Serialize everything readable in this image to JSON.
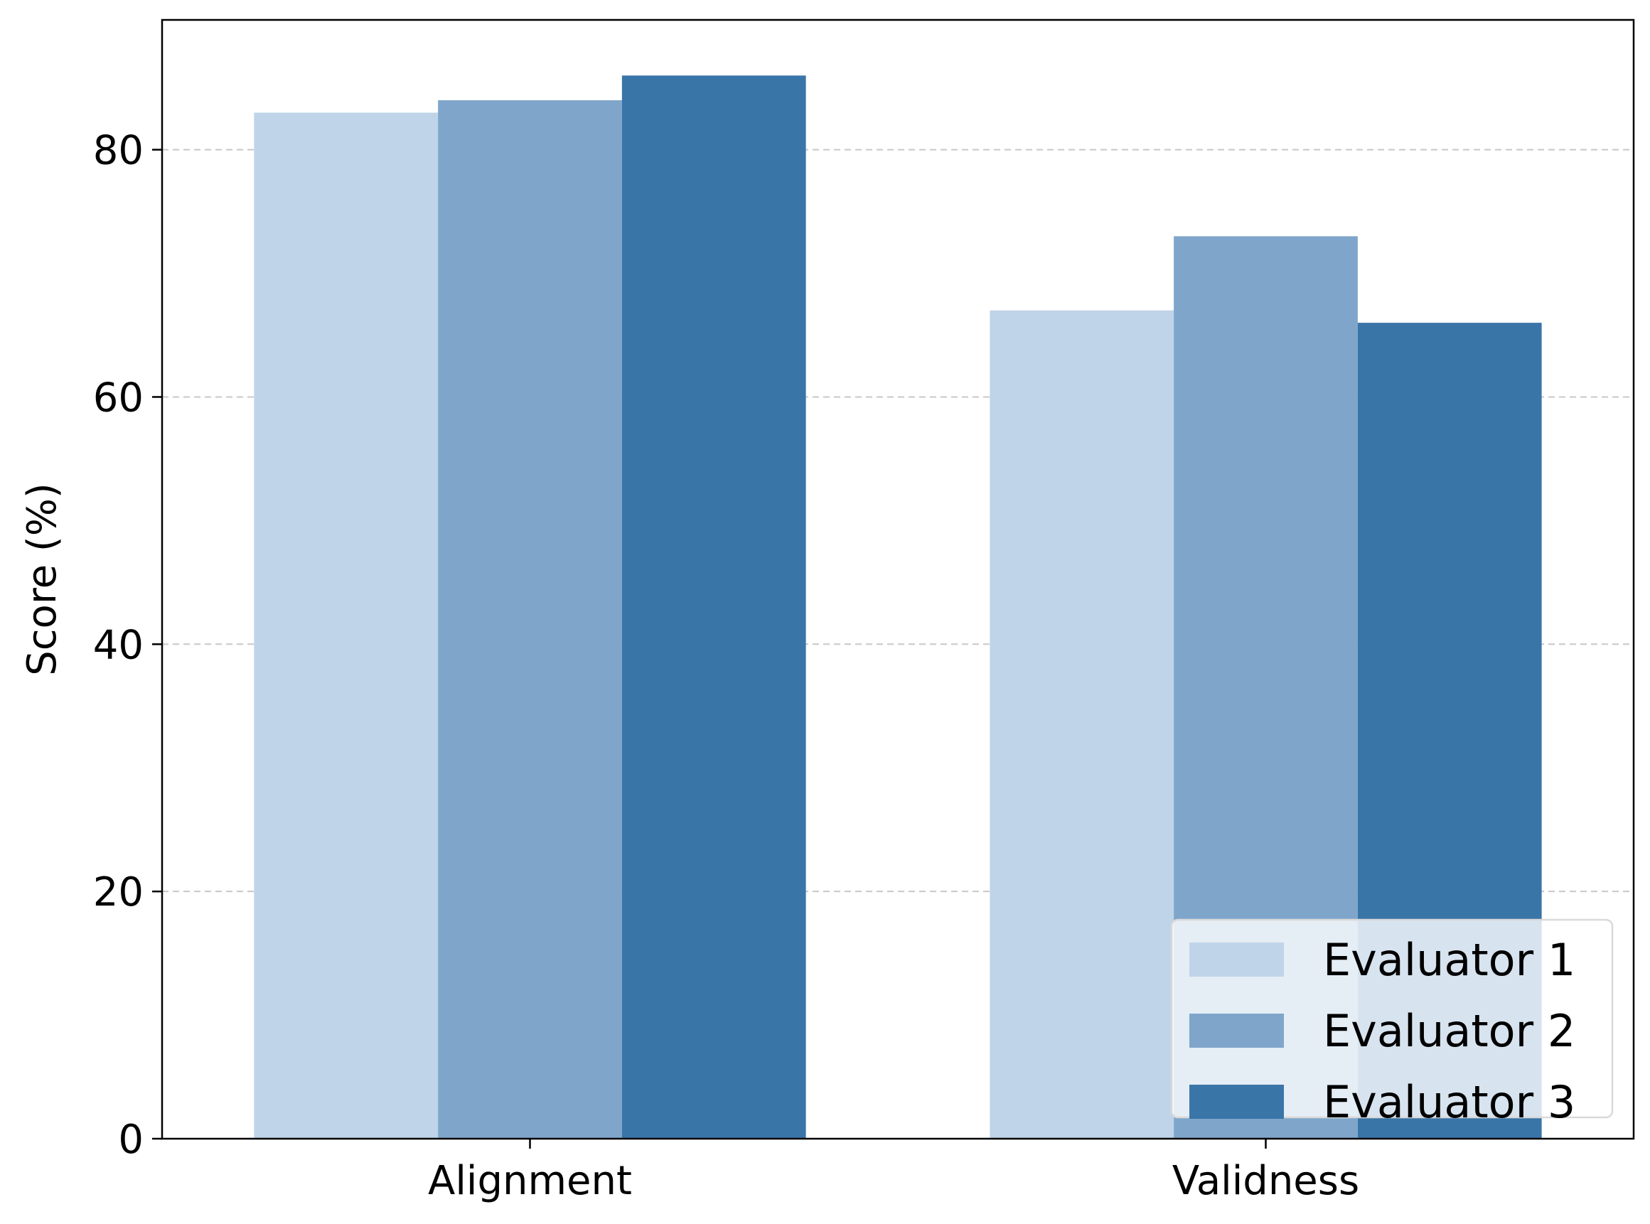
{
  "chart_data": {
    "type": "bar",
    "categories": [
      "Alignment",
      "Validness"
    ],
    "series": [
      {
        "name": "Evaluator 1",
        "values": [
          83,
          67
        ],
        "color": "#bfd4e8"
      },
      {
        "name": "Evaluator 2",
        "values": [
          84,
          73
        ],
        "color": "#7fa6ca"
      },
      {
        "name": "Evaluator 3",
        "values": [
          86,
          66
        ],
        "color": "#3a75a8"
      }
    ],
    "xlabel": "",
    "ylabel": "Score (%)",
    "ylim": [
      0,
      90.5
    ],
    "yticks": [
      0,
      20,
      40,
      60,
      80
    ],
    "grid": "y-dashed",
    "legend_position": "lower-right",
    "grid_color": "#c8c8c8"
  }
}
